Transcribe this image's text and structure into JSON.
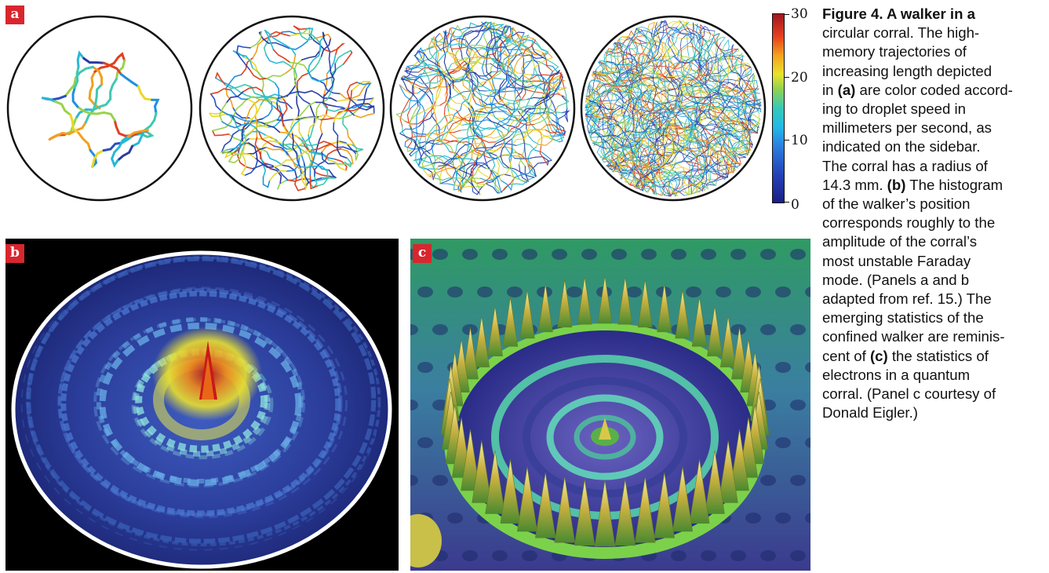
{
  "figure": {
    "panel_labels": {
      "a": "a",
      "b": "b",
      "c": "c"
    },
    "colorbar": {
      "ticks": [
        "30",
        "20",
        "10",
        "0"
      ],
      "tick_values": [
        30,
        20,
        10,
        0
      ],
      "range": [
        0,
        30
      ],
      "colors": [
        "#1c1f86",
        "#2c7fe0",
        "#35c9b9",
        "#e9e32b",
        "#e8401f",
        "#a0161d"
      ]
    },
    "caption": {
      "title": "Figure 4. A walker in a",
      "lines": [
        "circular corral. The high-",
        "memory trajectories of",
        "increasing length depicted",
        "in (a) are color coded accord-",
        "ing to droplet speed in",
        "millimeters per second, as",
        "indicated on the sidebar.",
        "The corral has a radius of",
        "14.3 mm. (b) The histogram",
        "of the walker’s position",
        "corresponds roughly to the",
        "amplitude of the corral’s",
        "most unstable Faraday",
        "mode. (Panels a and b",
        "adapted from ref. 15.) The",
        "emerging statistics of the",
        "confined walker are reminis-",
        "cent of (c) the statistics of",
        "electrons in a quantum",
        "corral. (Panel c courtesy of",
        "Donald Eigler.)"
      ]
    },
    "trajectory_colors": [
      "#2a4fc0",
      "#1e8fe0",
      "#27b8d6",
      "#40c8b0",
      "#9ad24c",
      "#e8d82a",
      "#f0a020",
      "#e04020",
      "#2a3aa0"
    ]
  }
}
